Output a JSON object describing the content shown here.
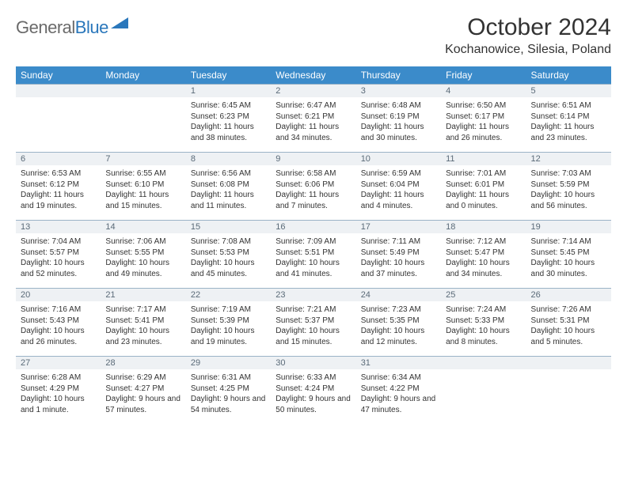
{
  "header": {
    "logo_part1": "General",
    "logo_part2": "Blue",
    "month_title": "October 2024",
    "location": "Kochanowice, Silesia, Poland"
  },
  "styling": {
    "header_bg": "#3b8bca",
    "header_text": "#ffffff",
    "daynum_bg": "#eef1f4",
    "daynum_border": "#9bb3c7",
    "body_text": "#333333",
    "logo_gray": "#6a6a6a",
    "logo_blue": "#2a77bb"
  },
  "weekdays": [
    "Sunday",
    "Monday",
    "Tuesday",
    "Wednesday",
    "Thursday",
    "Friday",
    "Saturday"
  ],
  "weeks": [
    [
      {
        "n": "",
        "sr": "",
        "ss": "",
        "dl": ""
      },
      {
        "n": "",
        "sr": "",
        "ss": "",
        "dl": ""
      },
      {
        "n": "1",
        "sr": "Sunrise: 6:45 AM",
        "ss": "Sunset: 6:23 PM",
        "dl": "Daylight: 11 hours and 38 minutes."
      },
      {
        "n": "2",
        "sr": "Sunrise: 6:47 AM",
        "ss": "Sunset: 6:21 PM",
        "dl": "Daylight: 11 hours and 34 minutes."
      },
      {
        "n": "3",
        "sr": "Sunrise: 6:48 AM",
        "ss": "Sunset: 6:19 PM",
        "dl": "Daylight: 11 hours and 30 minutes."
      },
      {
        "n": "4",
        "sr": "Sunrise: 6:50 AM",
        "ss": "Sunset: 6:17 PM",
        "dl": "Daylight: 11 hours and 26 minutes."
      },
      {
        "n": "5",
        "sr": "Sunrise: 6:51 AM",
        "ss": "Sunset: 6:14 PM",
        "dl": "Daylight: 11 hours and 23 minutes."
      }
    ],
    [
      {
        "n": "6",
        "sr": "Sunrise: 6:53 AM",
        "ss": "Sunset: 6:12 PM",
        "dl": "Daylight: 11 hours and 19 minutes."
      },
      {
        "n": "7",
        "sr": "Sunrise: 6:55 AM",
        "ss": "Sunset: 6:10 PM",
        "dl": "Daylight: 11 hours and 15 minutes."
      },
      {
        "n": "8",
        "sr": "Sunrise: 6:56 AM",
        "ss": "Sunset: 6:08 PM",
        "dl": "Daylight: 11 hours and 11 minutes."
      },
      {
        "n": "9",
        "sr": "Sunrise: 6:58 AM",
        "ss": "Sunset: 6:06 PM",
        "dl": "Daylight: 11 hours and 7 minutes."
      },
      {
        "n": "10",
        "sr": "Sunrise: 6:59 AM",
        "ss": "Sunset: 6:04 PM",
        "dl": "Daylight: 11 hours and 4 minutes."
      },
      {
        "n": "11",
        "sr": "Sunrise: 7:01 AM",
        "ss": "Sunset: 6:01 PM",
        "dl": "Daylight: 11 hours and 0 minutes."
      },
      {
        "n": "12",
        "sr": "Sunrise: 7:03 AM",
        "ss": "Sunset: 5:59 PM",
        "dl": "Daylight: 10 hours and 56 minutes."
      }
    ],
    [
      {
        "n": "13",
        "sr": "Sunrise: 7:04 AM",
        "ss": "Sunset: 5:57 PM",
        "dl": "Daylight: 10 hours and 52 minutes."
      },
      {
        "n": "14",
        "sr": "Sunrise: 7:06 AM",
        "ss": "Sunset: 5:55 PM",
        "dl": "Daylight: 10 hours and 49 minutes."
      },
      {
        "n": "15",
        "sr": "Sunrise: 7:08 AM",
        "ss": "Sunset: 5:53 PM",
        "dl": "Daylight: 10 hours and 45 minutes."
      },
      {
        "n": "16",
        "sr": "Sunrise: 7:09 AM",
        "ss": "Sunset: 5:51 PM",
        "dl": "Daylight: 10 hours and 41 minutes."
      },
      {
        "n": "17",
        "sr": "Sunrise: 7:11 AM",
        "ss": "Sunset: 5:49 PM",
        "dl": "Daylight: 10 hours and 37 minutes."
      },
      {
        "n": "18",
        "sr": "Sunrise: 7:12 AM",
        "ss": "Sunset: 5:47 PM",
        "dl": "Daylight: 10 hours and 34 minutes."
      },
      {
        "n": "19",
        "sr": "Sunrise: 7:14 AM",
        "ss": "Sunset: 5:45 PM",
        "dl": "Daylight: 10 hours and 30 minutes."
      }
    ],
    [
      {
        "n": "20",
        "sr": "Sunrise: 7:16 AM",
        "ss": "Sunset: 5:43 PM",
        "dl": "Daylight: 10 hours and 26 minutes."
      },
      {
        "n": "21",
        "sr": "Sunrise: 7:17 AM",
        "ss": "Sunset: 5:41 PM",
        "dl": "Daylight: 10 hours and 23 minutes."
      },
      {
        "n": "22",
        "sr": "Sunrise: 7:19 AM",
        "ss": "Sunset: 5:39 PM",
        "dl": "Daylight: 10 hours and 19 minutes."
      },
      {
        "n": "23",
        "sr": "Sunrise: 7:21 AM",
        "ss": "Sunset: 5:37 PM",
        "dl": "Daylight: 10 hours and 15 minutes."
      },
      {
        "n": "24",
        "sr": "Sunrise: 7:23 AM",
        "ss": "Sunset: 5:35 PM",
        "dl": "Daylight: 10 hours and 12 minutes."
      },
      {
        "n": "25",
        "sr": "Sunrise: 7:24 AM",
        "ss": "Sunset: 5:33 PM",
        "dl": "Daylight: 10 hours and 8 minutes."
      },
      {
        "n": "26",
        "sr": "Sunrise: 7:26 AM",
        "ss": "Sunset: 5:31 PM",
        "dl": "Daylight: 10 hours and 5 minutes."
      }
    ],
    [
      {
        "n": "27",
        "sr": "Sunrise: 6:28 AM",
        "ss": "Sunset: 4:29 PM",
        "dl": "Daylight: 10 hours and 1 minute."
      },
      {
        "n": "28",
        "sr": "Sunrise: 6:29 AM",
        "ss": "Sunset: 4:27 PM",
        "dl": "Daylight: 9 hours and 57 minutes."
      },
      {
        "n": "29",
        "sr": "Sunrise: 6:31 AM",
        "ss": "Sunset: 4:25 PM",
        "dl": "Daylight: 9 hours and 54 minutes."
      },
      {
        "n": "30",
        "sr": "Sunrise: 6:33 AM",
        "ss": "Sunset: 4:24 PM",
        "dl": "Daylight: 9 hours and 50 minutes."
      },
      {
        "n": "31",
        "sr": "Sunrise: 6:34 AM",
        "ss": "Sunset: 4:22 PM",
        "dl": "Daylight: 9 hours and 47 minutes."
      },
      {
        "n": "",
        "sr": "",
        "ss": "",
        "dl": ""
      },
      {
        "n": "",
        "sr": "",
        "ss": "",
        "dl": ""
      }
    ]
  ]
}
